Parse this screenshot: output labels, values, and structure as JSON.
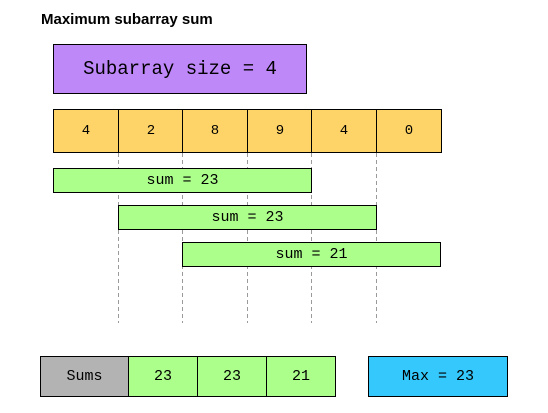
{
  "title": "Maximum subarray sum",
  "subarray_size_label": "Subarray size = 4",
  "array": [
    "4",
    "2",
    "8",
    "9",
    "4",
    "0"
  ],
  "windows": [
    {
      "label": "sum = 23"
    },
    {
      "label": "sum = 23"
    },
    {
      "label": "sum = 21"
    }
  ],
  "sums_label": "Sums",
  "sums": [
    "23",
    "23",
    "21"
  ],
  "max_label": "Max = 23",
  "colors": {
    "size_box": "#bf88f8",
    "array_cell": "#fed468",
    "window": "#adff8c",
    "sums_label": "#b3b3b3",
    "max_box": "#34c8fc"
  }
}
